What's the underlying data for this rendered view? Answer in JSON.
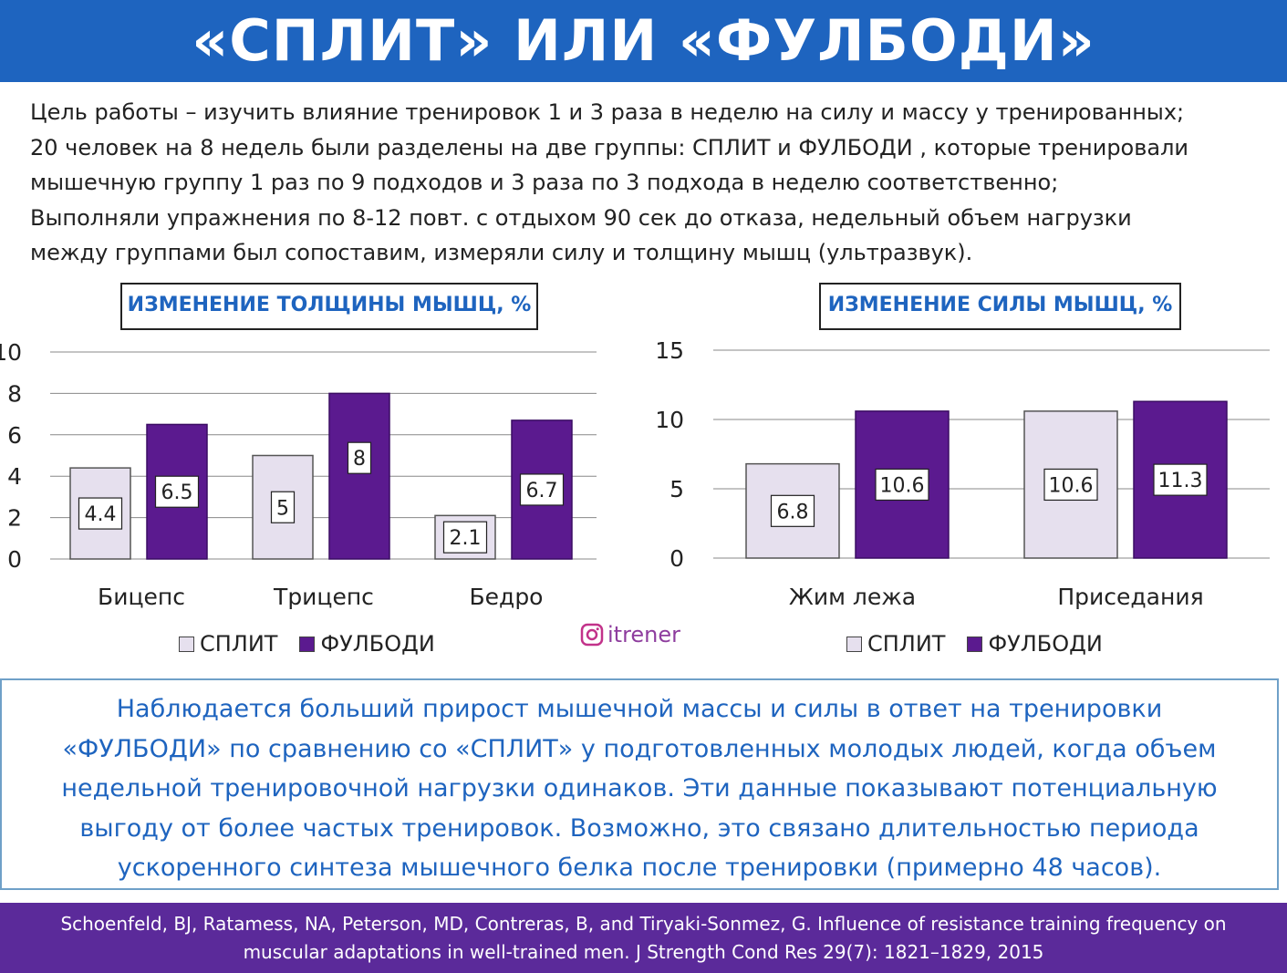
{
  "header": {
    "title": "«СПЛИТ» ИЛИ «ФУЛБОДИ»"
  },
  "intro": {
    "lines": [
      "Цель работы –  изучить влияние тренировок 1 и 3 раза в неделю на силу и массу у тренированных;",
      "20 человек на 8 недель были разделены на две группы: СПЛИТ и ФУЛБОДИ , которые тренировали",
      "мышечную группу 1 раз по 9 подходов и 3 раза по 3 подхода в неделю соответственно;",
      "Выполняли упражнения  по 8-12 повт. с отдыхом  90 сек до отказа, недельный объем нагрузки",
      "между группами был сопоставим,  измеряли силу и толщину мышц  (ультразвук)."
    ]
  },
  "colors": {
    "header_bg": "#1e64bf",
    "footer_bg": "#5b2a9a",
    "split": "#e6e0ee",
    "fullbody": "#5b1a8f",
    "title_text": "#1e64bf"
  },
  "chart_data": [
    {
      "type": "bar",
      "title": "ИЗМЕНЕНИЕ ТОЛЩИНЫ МЫШЦ, %",
      "categories": [
        "Бицепс",
        "Трицепс",
        "Бедро"
      ],
      "series": [
        {
          "name": "СПЛИТ",
          "values": [
            4.4,
            5,
            2.1
          ],
          "labels": [
            "4.4",
            "5",
            "2.1"
          ]
        },
        {
          "name": "ФУЛБОДИ",
          "values": [
            6.5,
            8,
            6.7
          ],
          "labels": [
            "6.5",
            "8",
            "6.7"
          ]
        }
      ],
      "yticks": [
        "0",
        "2",
        "4",
        "6",
        "8",
        "10"
      ],
      "ylim": [
        0,
        10
      ],
      "legend": "bottom",
      "grid": true
    },
    {
      "type": "bar",
      "title": "ИЗМЕНЕНИЕ СИЛЫ МЫШЦ, %",
      "categories": [
        "Жим лежа",
        "Приседания"
      ],
      "series": [
        {
          "name": "СПЛИТ",
          "values": [
            6.8,
            10.6
          ],
          "labels": [
            "6.8",
            "10.6"
          ]
        },
        {
          "name": "ФУЛБОДИ",
          "values": [
            10.6,
            11.3
          ],
          "labels": [
            "10.6",
            "11.3"
          ]
        }
      ],
      "yticks": [
        "0",
        "5",
        "10",
        "15"
      ],
      "ylim": [
        0,
        15
      ],
      "legend": "bottom",
      "grid": true
    }
  ],
  "watermark": {
    "icon": "instagram-icon",
    "text": "itrener"
  },
  "conclusion": {
    "lines": [
      "Наблюдается больший прирост мышечной массы и силы в ответ на тренировки",
      "«ФУЛБОДИ» по сравнению со «СПЛИТ» у подготовленных молодых людей,  когда объем",
      "недельной тренировочной нагрузки одинаков. Эти данные показывают потенциальную",
      "выгоду от более частых тренировок. Возможно, это связано длительностью  периода",
      "ускоренного синтеза мышечного белка после тренировки (примерно 48 часов)."
    ]
  },
  "footer": {
    "lines": [
      "Schoenfeld, BJ, Ratamess, NA, Peterson, MD, Contreras, B, and Tiryaki-Sonmez, G. Influence  of resistance training frequency  on",
      "muscular adaptations in well-trained  men. J Strength Cond Res 29(7): 1821–1829, 2015"
    ]
  }
}
